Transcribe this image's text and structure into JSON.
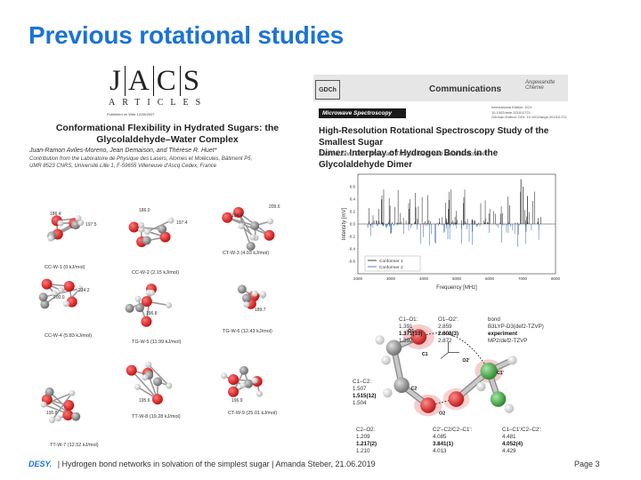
{
  "slide": {
    "title": "Previous rotational studies",
    "footer_brand": "DESY.",
    "footer_text": "| Hydrogen bond networks in solvation of the simplest sugar | Amanda Steber, 21.06.2019",
    "page": "Page 3"
  },
  "left_paper": {
    "journal_letters": [
      "J",
      "A",
      "C",
      "S"
    ],
    "journal_sub": "ARTICLES",
    "published": "Published on Web 12/28/2007",
    "title_line1": "Conformational Flexibility in Hydrated Sugars: the",
    "title_line2": "Glycolaldehyde–Water Complex",
    "authors": "Juan-Ramon Aviles-Moreno, Jean Demaison, and Thérèse R. Huet*",
    "contrib_line1": "Contribution from the Laboratoire de Physique des Lasers, Atomes et Molécules, Bâtiment P5,",
    "contrib_line2": "UMR 8523 CNRS, Université Lille 1, F-59655 Villeneuve d'Ascq Cedex, France",
    "structures": [
      {
        "label": "CC-W-1 (0 kJ/mol)",
        "nums": [
          "186.4",
          "197.5"
        ]
      },
      {
        "label": "CC-W-2 (2.15 kJ/mol)",
        "nums": [
          "186.0",
          "197.4"
        ]
      },
      {
        "label": "CT-W-3 (4.03 kJ/mol)",
        "nums": [
          "194.4",
          "209.6"
        ]
      },
      {
        "label": "CC-W-4 (5.83 kJ/mol)",
        "nums": [
          "214.2",
          "200.0"
        ]
      },
      {
        "label": "TG-W-5 (11.99 kJ/mol)",
        "nums": [
          "196.8"
        ]
      },
      {
        "label": "TG-W-6 (12.43 kJ/mol)",
        "nums": [
          "189.7"
        ]
      },
      {
        "label": "TT-W-7 (12.52 kJ/mol)",
        "nums": [
          "195.8"
        ]
      },
      {
        "label": "TT-W-8 (19.28 kJ/mol)",
        "nums": [
          "195.6"
        ]
      },
      {
        "label": "CT-W-9 (25.01 kJ/mol)",
        "nums": [
          "196.9"
        ]
      }
    ]
  },
  "right_paper": {
    "society": "GDCh",
    "section": "Communications",
    "publisher": "Angewandte Chemie",
    "category": "Microwave Spectroscopy",
    "edition_line1": "International Edition: DOI: 10.1002/anie.201511721",
    "edition_line2": "German Edition: DOI: 10.1002/ange.201511721",
    "title_line1": "High-Resolution Rotational Spectroscopy Study of the Smallest Sugar",
    "title_line2": "Dimer: Interplay of Hydrogen Bonds in the Glycolaldehyde Dimer",
    "authors": "Sabrina Zinn, Chris Medcraft, Thomas Betz, and Melanie Schnell*",
    "chart_data": {
      "type": "line",
      "xlabel": "Frequency [MHz]",
      "ylabel": "Intensity [mV]",
      "xlim": [
        2000,
        8000
      ],
      "ylim": [
        -0.8,
        0.8
      ],
      "x_ticks": [
        "2000",
        "3000",
        "4000",
        "5000",
        "6000",
        "7000",
        "8000"
      ],
      "y_ticks": [
        "0.6",
        "0.4",
        "0.2",
        "0.0",
        "-0.2",
        "-0.4",
        "-0.6"
      ],
      "legend": [
        "Conformer 1",
        "Conformer 2"
      ],
      "series_colors": [
        "#111111",
        "#2f5fb0"
      ]
    },
    "table": {
      "col_headers": [
        "C1–O1:",
        "O1–O2':",
        "bond"
      ],
      "row_labels": [
        "B3LYP-D3(def2-TZVP)",
        "experiment",
        "MP2/def2-TZVP"
      ],
      "c1o1": [
        "1.391",
        "1.371(10)",
        "1.392"
      ],
      "o1o2": [
        "2.859",
        "2.808(3)",
        "2.872"
      ],
      "c1c2_label": "C1–C2:",
      "c1c2": [
        "1.507",
        "1.515(12)",
        "1.504"
      ],
      "c2o2_label": "C2–O2:",
      "c2o2": [
        "1.209",
        "1.217(2)",
        "1.210"
      ],
      "c2c1_label": "C2'–C2/C2–C1':",
      "c2c1": [
        "4.085",
        "3.841(1)",
        "4.013"
      ],
      "c1c1_label": "C1–C1'/C2–C2':",
      "c1c1": [
        "4.481",
        "4.052(4)",
        "4.429"
      ],
      "atom_labels": [
        "O2'",
        "O1",
        "C1",
        "C2",
        "O2",
        "C1'"
      ]
    }
  }
}
